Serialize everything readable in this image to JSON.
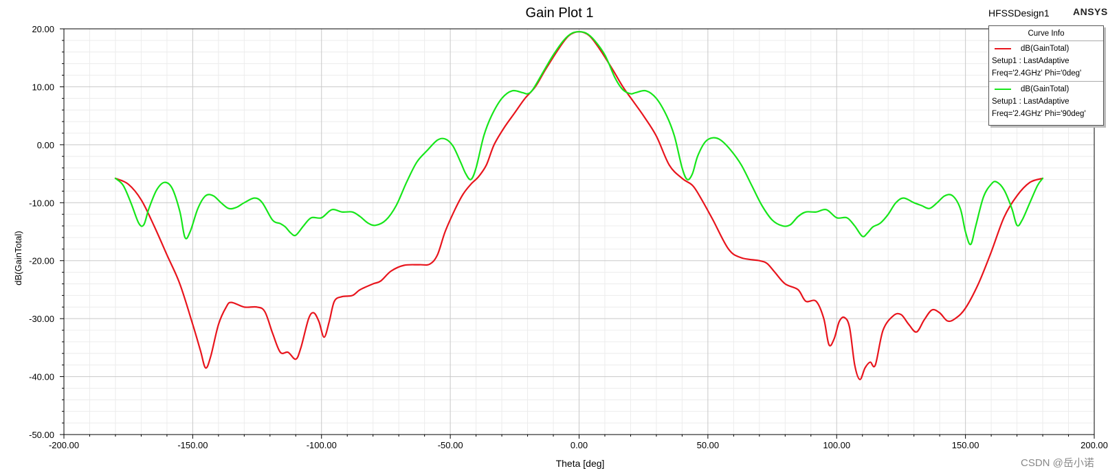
{
  "header": {
    "title": "Gain Plot 1",
    "design_name": "HFSSDesign1",
    "brand": "ANSYS"
  },
  "legend": {
    "title": "Curve Info",
    "entries": [
      {
        "name": "dB(GainTotal)",
        "setup": "Setup1 : LastAdaptive",
        "params": "Freq='2.4GHz' Phi='0deg'",
        "color": "#e8141c"
      },
      {
        "name": "dB(GainTotal)",
        "setup": "Setup1 : LastAdaptive",
        "params": "Freq='2.4GHz' Phi='90deg'",
        "color": "#16e61a"
      }
    ]
  },
  "watermark": "CSDN @岳小诺",
  "chart_data": {
    "type": "line",
    "title": "Gain Plot 1",
    "xlabel": "Theta [deg]",
    "ylabel": "dB(GainTotal)",
    "xlim": [
      -200,
      200
    ],
    "ylim": [
      -50,
      20
    ],
    "x_ticks": [
      "-200.00",
      "-150.00",
      "-100.00",
      "-50.00",
      "0.00",
      "50.00",
      "100.00",
      "150.00",
      "200.00"
    ],
    "y_ticks": [
      "20.00",
      "10.00",
      "0.00",
      "-10.00",
      "-20.00",
      "-30.00",
      "-40.00",
      "-50.00"
    ],
    "grid": true,
    "legend_position": "top-right",
    "series": [
      {
        "name": "dB(GainTotal) Setup1 : LastAdaptive Freq='2.4GHz' Phi='0deg'",
        "color": "#e8141c",
        "points": [
          [
            -180,
            -5.8
          ],
          [
            -175,
            -6.8
          ],
          [
            -170,
            -9.5
          ],
          [
            -165,
            -14
          ],
          [
            -160,
            -19
          ],
          [
            -155,
            -24
          ],
          [
            -150,
            -31
          ],
          [
            -147,
            -35.5
          ],
          [
            -145,
            -38.5
          ],
          [
            -143,
            -36.5
          ],
          [
            -140,
            -31
          ],
          [
            -137,
            -28
          ],
          [
            -135,
            -27.2
          ],
          [
            -130,
            -28
          ],
          [
            -125,
            -28
          ],
          [
            -122,
            -28.8
          ],
          [
            -119,
            -32.5
          ],
          [
            -116,
            -35.8
          ],
          [
            -113,
            -35.8
          ],
          [
            -110,
            -37
          ],
          [
            -108,
            -35
          ],
          [
            -105,
            -30
          ],
          [
            -103,
            -29
          ],
          [
            -101,
            -30.5
          ],
          [
            -99,
            -33.2
          ],
          [
            -97,
            -30.5
          ],
          [
            -95,
            -27
          ],
          [
            -92,
            -26.2
          ],
          [
            -88,
            -26
          ],
          [
            -85,
            -25
          ],
          [
            -80,
            -24
          ],
          [
            -77,
            -23.5
          ],
          [
            -73,
            -21.8
          ],
          [
            -68,
            -20.8
          ],
          [
            -62,
            -20.7
          ],
          [
            -58,
            -20.6
          ],
          [
            -55,
            -19
          ],
          [
            -52,
            -15
          ],
          [
            -48,
            -11
          ],
          [
            -45,
            -8.5
          ],
          [
            -42,
            -6.8
          ],
          [
            -39,
            -5.5
          ],
          [
            -36,
            -3.5
          ],
          [
            -33,
            0
          ],
          [
            -29,
            3
          ],
          [
            -25,
            5.5
          ],
          [
            -21,
            8
          ],
          [
            -17,
            10
          ],
          [
            -13,
            13
          ],
          [
            -8,
            16.5
          ],
          [
            -4,
            18.8
          ],
          [
            0,
            19.5
          ],
          [
            4,
            18.8
          ],
          [
            8,
            16.5
          ],
          [
            13,
            13
          ],
          [
            17,
            10
          ],
          [
            21,
            7.5
          ],
          [
            25,
            5
          ],
          [
            30,
            1.5
          ],
          [
            35,
            -3.5
          ],
          [
            40,
            -5.8
          ],
          [
            44,
            -7
          ],
          [
            47,
            -9
          ],
          [
            52,
            -13
          ],
          [
            58,
            -18
          ],
          [
            63,
            -19.5
          ],
          [
            70,
            -20
          ],
          [
            73,
            -20.5
          ],
          [
            76,
            -22
          ],
          [
            80,
            -24
          ],
          [
            85,
            -25
          ],
          [
            88,
            -27
          ],
          [
            92,
            -27
          ],
          [
            95,
            -30
          ],
          [
            97,
            -34.5
          ],
          [
            99,
            -33.5
          ],
          [
            101,
            -30.5
          ],
          [
            103,
            -29.8
          ],
          [
            105,
            -31.5
          ],
          [
            107,
            -38
          ],
          [
            109,
            -40.5
          ],
          [
            111,
            -38.5
          ],
          [
            113,
            -37.5
          ],
          [
            115,
            -38
          ],
          [
            118,
            -32
          ],
          [
            122,
            -29.5
          ],
          [
            125,
            -29.3
          ],
          [
            128,
            -31
          ],
          [
            131,
            -32.3
          ],
          [
            134,
            -30.2
          ],
          [
            137,
            -28.5
          ],
          [
            140,
            -29
          ],
          [
            143,
            -30.4
          ],
          [
            146,
            -30
          ],
          [
            150,
            -28.2
          ],
          [
            155,
            -24
          ],
          [
            160,
            -18.5
          ],
          [
            165,
            -12.5
          ],
          [
            170,
            -8.8
          ],
          [
            175,
            -6.5
          ],
          [
            180,
            -5.8
          ]
        ]
      },
      {
        "name": "dB(GainTotal) Setup1 : LastAdaptive Freq='2.4GHz' Phi='90deg'",
        "color": "#16e61a",
        "points": [
          [
            -180,
            -5.8
          ],
          [
            -177,
            -7
          ],
          [
            -174,
            -10
          ],
          [
            -171,
            -13.5
          ],
          [
            -169,
            -13.8
          ],
          [
            -167,
            -11
          ],
          [
            -164,
            -7.8
          ],
          [
            -161,
            -6.5
          ],
          [
            -158,
            -7.5
          ],
          [
            -155,
            -11.5
          ],
          [
            -153,
            -16
          ],
          [
            -151,
            -15
          ],
          [
            -148,
            -11
          ],
          [
            -145,
            -8.8
          ],
          [
            -142,
            -8.8
          ],
          [
            -139,
            -10
          ],
          [
            -136,
            -11
          ],
          [
            -133,
            -10.8
          ],
          [
            -130,
            -10
          ],
          [
            -126,
            -9.2
          ],
          [
            -123,
            -10
          ],
          [
            -119,
            -13
          ],
          [
            -116,
            -13.6
          ],
          [
            -114,
            -14.2
          ],
          [
            -112,
            -15.2
          ],
          [
            -110,
            -15.6
          ],
          [
            -107,
            -14
          ],
          [
            -104,
            -12.6
          ],
          [
            -100,
            -12.6
          ],
          [
            -96,
            -11.2
          ],
          [
            -92,
            -11.6
          ],
          [
            -88,
            -11.6
          ],
          [
            -85,
            -12.4
          ],
          [
            -82,
            -13.5
          ],
          [
            -79,
            -13.9
          ],
          [
            -75,
            -13
          ],
          [
            -71,
            -10.5
          ],
          [
            -67,
            -6.5
          ],
          [
            -63,
            -3
          ],
          [
            -59,
            -1
          ],
          [
            -55,
            0.8
          ],
          [
            -52,
            1
          ],
          [
            -49,
            -0.2
          ],
          [
            -46,
            -3
          ],
          [
            -44,
            -5
          ],
          [
            -42,
            -6
          ],
          [
            -40,
            -4
          ],
          [
            -37,
            1.5
          ],
          [
            -34,
            5
          ],
          [
            -30,
            8
          ],
          [
            -26,
            9.3
          ],
          [
            -22,
            9
          ],
          [
            -20,
            8.8
          ],
          [
            -18,
            9.5
          ],
          [
            -14,
            12.5
          ],
          [
            -10,
            15.5
          ],
          [
            -6,
            18
          ],
          [
            -3,
            19.2
          ],
          [
            0,
            19.5
          ],
          [
            3,
            19.2
          ],
          [
            6,
            18
          ],
          [
            10,
            15.5
          ],
          [
            14,
            11.5
          ],
          [
            17,
            9.5
          ],
          [
            20,
            8.8
          ],
          [
            22,
            9
          ],
          [
            26,
            9.3
          ],
          [
            30,
            8
          ],
          [
            34,
            5
          ],
          [
            37,
            1.5
          ],
          [
            40,
            -4
          ],
          [
            42,
            -6
          ],
          [
            44,
            -5
          ],
          [
            46,
            -2
          ],
          [
            49,
            0.5
          ],
          [
            52,
            1.2
          ],
          [
            55,
            0.8
          ],
          [
            59,
            -1
          ],
          [
            63,
            -3.5
          ],
          [
            67,
            -7
          ],
          [
            71,
            -10.5
          ],
          [
            75,
            -13
          ],
          [
            79,
            -14
          ],
          [
            82,
            -13.8
          ],
          [
            85,
            -12.4
          ],
          [
            88,
            -11.6
          ],
          [
            92,
            -11.6
          ],
          [
            96,
            -11.2
          ],
          [
            100,
            -12.6
          ],
          [
            104,
            -12.6
          ],
          [
            107,
            -14
          ],
          [
            110,
            -15.8
          ],
          [
            112,
            -15.2
          ],
          [
            114,
            -14.2
          ],
          [
            117,
            -13.5
          ],
          [
            120,
            -12
          ],
          [
            123,
            -10
          ],
          [
            126,
            -9.2
          ],
          [
            130,
            -10
          ],
          [
            133,
            -10.5
          ],
          [
            136,
            -11
          ],
          [
            139,
            -10
          ],
          [
            142,
            -8.8
          ],
          [
            145,
            -8.8
          ],
          [
            148,
            -11
          ],
          [
            150,
            -15
          ],
          [
            152,
            -17.2
          ],
          [
            154,
            -14
          ],
          [
            157,
            -9
          ],
          [
            160,
            -6.8
          ],
          [
            162,
            -6.4
          ],
          [
            165,
            -7.8
          ],
          [
            168,
            -11
          ],
          [
            170,
            -13.9
          ],
          [
            172,
            -13
          ],
          [
            175,
            -10
          ],
          [
            178,
            -7
          ],
          [
            180,
            -5.8
          ]
        ]
      }
    ]
  }
}
